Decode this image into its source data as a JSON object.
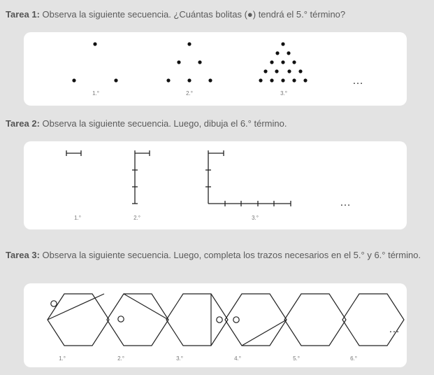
{
  "tasks": [
    {
      "title": "Tarea 1:",
      "text": "Observa la siguiente secuencia. ¿Cuántas bolitas (●) tendrá el 5.° término?"
    },
    {
      "title": "Tarea 2:",
      "text": "Observa la siguiente secuencia. Luego, dibuja el 6.° término."
    },
    {
      "title": "Tarea 3:",
      "text": "Observa la siguiente secuencia. Luego, completa los trazos necesarios en el 5.° y 6.° término."
    }
  ],
  "seq1": {
    "labels": [
      "1.°",
      "2.°",
      "3.°"
    ],
    "ellipsis": "…"
  },
  "seq2": {
    "labels": [
      "1.°",
      "2.°",
      "3.°"
    ],
    "ellipsis": "…"
  },
  "seq3": {
    "labels": [
      "1.°",
      "2.°",
      "3.°",
      "4.°",
      "5.°",
      "6.°"
    ],
    "ellipsis": "…"
  }
}
